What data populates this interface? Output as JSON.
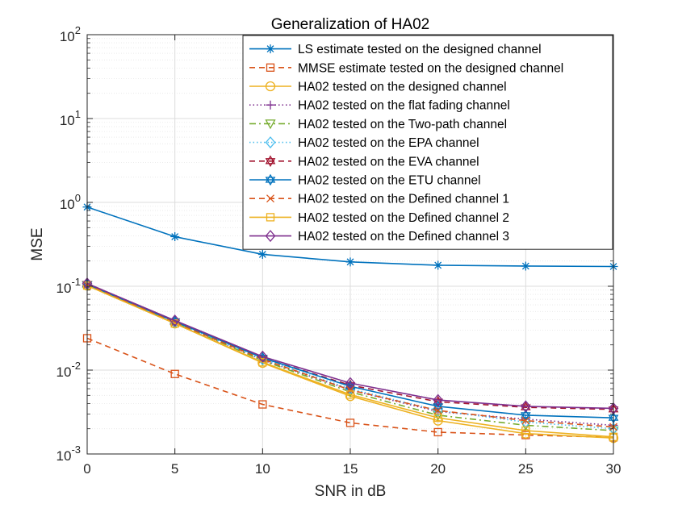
{
  "chart_data": {
    "type": "line",
    "title": "Generalization of HA02",
    "xlabel": "SNR in dB",
    "ylabel": "MSE",
    "yscale": "log",
    "xlim": [
      0,
      30
    ],
    "ylim": [
      0.001,
      100
    ],
    "grid": true,
    "legend_position": "top-right",
    "x": [
      0,
      5,
      10,
      15,
      20,
      25,
      30
    ],
    "x_ticks": [
      0,
      5,
      10,
      15,
      20,
      25,
      30
    ],
    "y_ticks": [
      {
        "value": 0.001,
        "base": "10",
        "exp": "-3"
      },
      {
        "value": 0.01,
        "base": "10",
        "exp": "-2"
      },
      {
        "value": 0.1,
        "base": "10",
        "exp": "-1"
      },
      {
        "value": 1,
        "base": "10",
        "exp": "0"
      },
      {
        "value": 10,
        "base": "10",
        "exp": "1"
      },
      {
        "value": 100,
        "base": "10",
        "exp": "2"
      }
    ],
    "series": [
      {
        "name": "LS estimate tested on the designed channel",
        "color": "#0072BD",
        "dash": "solid",
        "marker": "asterisk",
        "values": [
          0.88,
          0.39,
          0.24,
          0.195,
          0.178,
          0.174,
          0.172
        ]
      },
      {
        "name": "MMSE estimate tested on the designed channel",
        "color": "#D95319",
        "dash": "dashed",
        "marker": "square",
        "values": [
          0.024,
          0.009,
          0.0039,
          0.00235,
          0.00182,
          0.00168,
          0.00158
        ]
      },
      {
        "name": "HA02 tested on the designed channel",
        "color": "#EDB120",
        "dash": "solid",
        "marker": "circle",
        "values": [
          0.102,
          0.036,
          0.0122,
          0.0049,
          0.0025,
          0.00175,
          0.00155
        ]
      },
      {
        "name": "HA02 tested on the flat fading channel",
        "color": "#7E2F8E",
        "dash": "dotted",
        "marker": "plus",
        "values": [
          0.104,
          0.037,
          0.0132,
          0.0058,
          0.0032,
          0.0026,
          0.0022
        ]
      },
      {
        "name": "HA02 tested on the Two-path channel",
        "color": "#77AC30",
        "dash": "dashdot",
        "marker": "triangle-down",
        "values": [
          0.103,
          0.037,
          0.013,
          0.0055,
          0.0029,
          0.0022,
          0.0019
        ]
      },
      {
        "name": "HA02 tested on the EPA channel",
        "color": "#4DBEEE",
        "dash": "dotted",
        "marker": "diamond",
        "values": [
          0.104,
          0.037,
          0.0135,
          0.006,
          0.0033,
          0.0024,
          0.002
        ]
      },
      {
        "name": "HA02 tested on the EVA channel",
        "color": "#A2142F",
        "dash": "dashed",
        "marker": "hexagram",
        "values": [
          0.106,
          0.038,
          0.014,
          0.0066,
          0.0042,
          0.0036,
          0.0034
        ]
      },
      {
        "name": "HA02 tested on the ETU channel",
        "color": "#0072BD",
        "dash": "solid",
        "marker": "hexagram",
        "values": [
          0.105,
          0.038,
          0.014,
          0.0064,
          0.0037,
          0.0029,
          0.0027
        ]
      },
      {
        "name": "HA02 tested on the Defined channel 1",
        "color": "#D95319",
        "dash": "dashed",
        "marker": "x",
        "values": [
          0.104,
          0.037,
          0.0135,
          0.0058,
          0.0033,
          0.0025,
          0.0021
        ]
      },
      {
        "name": "HA02 tested on the Defined channel 2",
        "color": "#EDB120",
        "dash": "solid",
        "marker": "square",
        "values": [
          0.102,
          0.036,
          0.0124,
          0.0051,
          0.0027,
          0.0019,
          0.0016
        ]
      },
      {
        "name": "HA02 tested on the Defined channel 3",
        "color": "#7E2F8E",
        "dash": "solid",
        "marker": "diamond",
        "values": [
          0.108,
          0.039,
          0.0145,
          0.007,
          0.0044,
          0.0037,
          0.0035
        ]
      }
    ]
  }
}
